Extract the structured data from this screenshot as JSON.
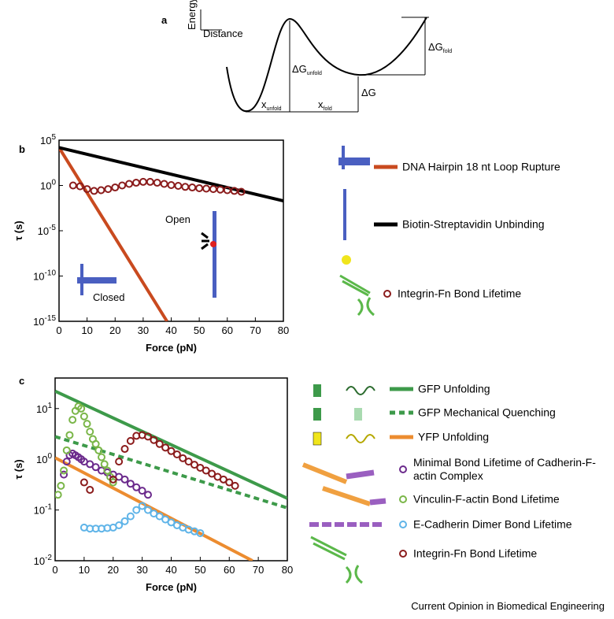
{
  "panel_labels": [
    "a",
    "b",
    "c"
  ],
  "diagram_a": {
    "axis_y": "Energy",
    "axis_x": "Distance",
    "dG_unfold": {
      "base": "ΔG",
      "sub": "unfold"
    },
    "dG_fold": {
      "base": "ΔG",
      "sub": "fold"
    },
    "dG": "ΔG",
    "x_unfold": {
      "base": "x",
      "sub": "unfold"
    },
    "x_fold": {
      "base": "x",
      "sub": "fold"
    }
  },
  "chart_data": [
    {
      "type": "line",
      "xlabel": "Force (pN)",
      "ylabel": "τ (s)",
      "yscale": "log",
      "xlim": [
        0,
        80
      ],
      "xticks": [
        0,
        10,
        20,
        30,
        40,
        50,
        60,
        70,
        80
      ],
      "ylim": [
        1e-15,
        100000
      ],
      "yticks": [
        {
          "value": 100000,
          "label": "10",
          "exponent": "5"
        },
        {
          "value": 1,
          "label": "10",
          "exponent": "0"
        },
        {
          "value": 1e-05,
          "label": "10",
          "exponent": "-5"
        },
        {
          "value": 1e-10,
          "label": "10",
          "exponent": "-10"
        },
        {
          "value": 1e-15,
          "label": "10",
          "exponent": "-15"
        }
      ],
      "annotations": [
        "Open",
        "Closed"
      ],
      "series": [
        {
          "name": "DNA Hairpin 18 nt Loop Rupture",
          "color": "#c94a1f",
          "mode": "line",
          "dash": false,
          "x": [
            0,
            38.5
          ],
          "values": [
            15000,
            1e-15
          ]
        },
        {
          "name": "Biotin-Streptavidin Unbinding",
          "color": "#000000",
          "mode": "line",
          "dash": false,
          "x": [
            0,
            80
          ],
          "values": [
            15000,
            0.02
          ]
        },
        {
          "name": "Integrin-Fn Bond Lifetime",
          "color": "#8b1c1c",
          "mode": "markers",
          "dash": false,
          "x": [
            5,
            7.5,
            10,
            12.5,
            15,
            17.5,
            20,
            22.5,
            25,
            27.5,
            30,
            32.5,
            35,
            37.5,
            40,
            42.5,
            45,
            47.5,
            50,
            52.5,
            55,
            57.5,
            60,
            62.5,
            65
          ],
          "values": [
            1,
            0.8,
            0.4,
            0.25,
            0.3,
            0.4,
            0.6,
            1,
            1.5,
            2,
            2.5,
            2.5,
            2,
            1.5,
            1.1,
            0.9,
            0.7,
            0.6,
            0.5,
            0.45,
            0.4,
            0.35,
            0.3,
            0.25,
            0.2
          ]
        }
      ]
    },
    {
      "type": "line",
      "xlabel": "Force (pN)",
      "ylabel": "τ (s)",
      "yscale": "log",
      "xlim": [
        0,
        80
      ],
      "xticks": [
        0,
        10,
        20,
        30,
        40,
        50,
        60,
        70,
        80
      ],
      "ylim": [
        0.01,
        40
      ],
      "yticks": [
        {
          "value": 10,
          "label": "10",
          "exponent": "1"
        },
        {
          "value": 1,
          "label": "10",
          "exponent": "0"
        },
        {
          "value": 0.1,
          "label": "10",
          "exponent": "-1"
        },
        {
          "value": 0.01,
          "label": "10",
          "exponent": "-2"
        }
      ],
      "annotations": [],
      "series": [
        {
          "name": "GFP Unfolding",
          "color": "#3d9a4a",
          "mode": "line",
          "dash": false,
          "x": [
            0,
            80
          ],
          "values": [
            22,
            0.17
          ]
        },
        {
          "name": "GFP Mechanical Quenching",
          "color": "#3d9a4a",
          "mode": "line",
          "dash": true,
          "x": [
            0,
            80
          ],
          "values": [
            2.8,
            0.11
          ]
        },
        {
          "name": "YFP Unfolding",
          "color": "#ec8c30",
          "mode": "line",
          "dash": false,
          "x": [
            0,
            68
          ],
          "values": [
            1.07,
            0.01
          ]
        },
        {
          "name": "Minimal Bond Lifetime of Cadherin-F-actin Complex",
          "color": "#6b2a8c",
          "mode": "markers",
          "dash": false,
          "x": [
            3,
            4,
            5,
            6,
            7,
            8,
            9,
            10,
            12,
            14,
            16,
            18,
            20,
            22,
            24,
            26,
            28,
            30,
            32
          ],
          "values": [
            0.5,
            0.9,
            1.2,
            1.3,
            1.2,
            1.1,
            1,
            0.9,
            0.8,
            0.7,
            0.6,
            0.55,
            0.5,
            0.45,
            0.4,
            0.33,
            0.28,
            0.24,
            0.2
          ]
        },
        {
          "name": "Vinculin-F-actin Bond Lifetime",
          "color": "#7ab648",
          "mode": "markers",
          "dash": false,
          "x": [
            1,
            2,
            3,
            4,
            5,
            6,
            7,
            8,
            9,
            10,
            11,
            12,
            13,
            14,
            15,
            16,
            17,
            18,
            19,
            20
          ],
          "values": [
            0.2,
            0.3,
            0.6,
            1.5,
            3,
            6,
            9,
            11,
            10,
            7,
            5,
            3.5,
            2.5,
            2,
            1.5,
            1.1,
            0.8,
            0.6,
            0.45,
            0.35
          ]
        },
        {
          "name": "E-Cadherin Dimer Bond Lifetime",
          "color": "#5fb4e8",
          "mode": "markers",
          "dash": false,
          "x": [
            10,
            12,
            14,
            16,
            18,
            20,
            22,
            24,
            26,
            28,
            30,
            32,
            34,
            36,
            38,
            40,
            42,
            44,
            46,
            48,
            50
          ],
          "values": [
            0.045,
            0.043,
            0.043,
            0.043,
            0.044,
            0.045,
            0.05,
            0.06,
            0.075,
            0.1,
            0.12,
            0.1,
            0.085,
            0.075,
            0.065,
            0.057,
            0.05,
            0.045,
            0.041,
            0.038,
            0.035
          ]
        },
        {
          "name": "Integrin-Fn Bond Lifetime",
          "color": "#8b1c1c",
          "mode": "markers",
          "dash": false,
          "x": [
            10,
            12,
            20,
            22,
            24,
            26,
            28,
            30,
            32,
            34,
            36,
            38,
            40,
            42,
            44,
            46,
            48,
            50,
            52,
            54,
            56,
            58,
            60,
            62
          ],
          "values": [
            0.35,
            0.25,
            0.4,
            0.9,
            1.6,
            2.3,
            2.9,
            3,
            2.8,
            2.4,
            2,
            1.7,
            1.45,
            1.25,
            1.05,
            0.9,
            0.78,
            0.68,
            0.6,
            0.52,
            0.45,
            0.4,
            0.35,
            0.3
          ]
        }
      ]
    }
  ],
  "footer": "Current Opinion in Biomedical Engineering"
}
